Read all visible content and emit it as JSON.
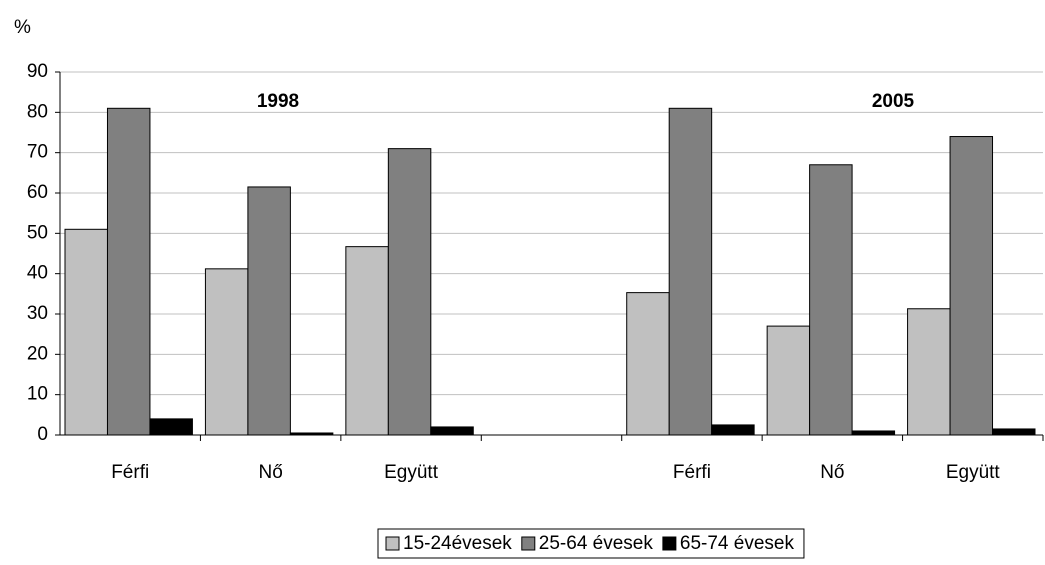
{
  "chart_data": {
    "type": "bar",
    "y_label": "%",
    "annotations": [
      "1998",
      "2005"
    ],
    "categories": [
      "Férfi",
      "Nő",
      "Együtt",
      null,
      "Férfi",
      "Nő",
      "Együtt"
    ],
    "series": [
      {
        "name": "15-24évesek",
        "color": "#c0c0c0",
        "values": [
          51,
          41.2,
          46.7,
          null,
          35.3,
          27,
          31.3
        ]
      },
      {
        "name": "25-64 évesek",
        "color": "#808080",
        "values": [
          81,
          61.5,
          71,
          null,
          81,
          67,
          74
        ]
      },
      {
        "name": "65-74 évesek",
        "color": "#000000",
        "values": [
          4,
          0.5,
          2,
          null,
          2.5,
          1,
          1.5
        ]
      }
    ],
    "ylim": [
      0,
      90
    ],
    "yticks": [
      0,
      10,
      20,
      30,
      40,
      50,
      60,
      70,
      80,
      90
    ],
    "grid": true,
    "legend": "bottom"
  }
}
